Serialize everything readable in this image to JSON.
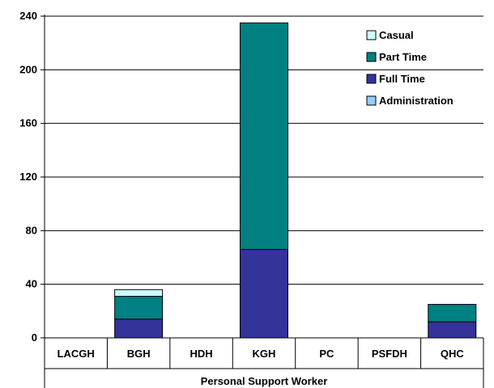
{
  "chart_data": {
    "type": "bar",
    "stacked": true,
    "categories": [
      "LACGH",
      "BGH",
      "HDH",
      "KGH",
      "PC",
      "PSFDH",
      "QHC"
    ],
    "group_label": "Personal Support Worker",
    "series": [
      {
        "name": "Administration",
        "color": "#99ccff",
        "values": [
          0,
          0,
          0,
          0,
          0,
          0,
          0
        ]
      },
      {
        "name": "Full Time",
        "color": "#333399",
        "values": [
          0,
          14,
          0,
          66,
          0,
          0,
          12
        ]
      },
      {
        "name": "Part Time",
        "color": "#008080",
        "values": [
          0,
          17,
          0,
          169,
          0,
          0,
          13
        ]
      },
      {
        "name": "Casual",
        "color": "#ccffff",
        "values": [
          0,
          5,
          0,
          0,
          0,
          0,
          0
        ]
      }
    ],
    "legend_order": [
      "Casual",
      "Part Time",
      "Full Time",
      "Administration"
    ],
    "legend_position": "top-right",
    "ylim": [
      0,
      240
    ],
    "yticks": [
      "0",
      "40",
      "80",
      "120",
      "160",
      "200",
      "240"
    ],
    "grid": true
  }
}
